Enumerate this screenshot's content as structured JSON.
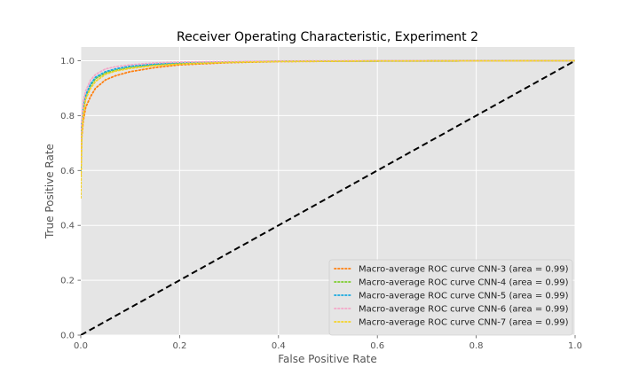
{
  "chart_data": {
    "type": "line",
    "title": "Receiver Operating Characteristic, Experiment 2",
    "xlabel": "False Positive Rate",
    "ylabel": "True Positive Rate",
    "xlim": [
      0.0,
      1.0
    ],
    "ylim": [
      0.0,
      1.05
    ],
    "xticks": [
      0.0,
      0.2,
      0.4,
      0.6,
      0.8,
      1.0
    ],
    "yticks": [
      0.0,
      0.2,
      0.4,
      0.6,
      0.8,
      1.0
    ],
    "xtick_labels": [
      "0.0",
      "0.2",
      "0.4",
      "0.6",
      "0.8",
      "1.0"
    ],
    "ytick_labels": [
      "0.0",
      "0.2",
      "0.4",
      "0.6",
      "0.8",
      "1.0"
    ],
    "grid": true,
    "legend_position": "lower-right",
    "background": "#e5e5e5",
    "series": [
      {
        "name": "Macro-average ROC curve CNN-3 (area = 0.99)",
        "color": "#ff7f0e",
        "style": "dotted",
        "x": [
          0.0,
          0.002,
          0.005,
          0.01,
          0.02,
          0.03,
          0.04,
          0.05,
          0.07,
          0.1,
          0.15,
          0.2,
          0.3,
          0.4,
          0.6,
          1.0
        ],
        "y": [
          0.58,
          0.72,
          0.78,
          0.83,
          0.87,
          0.9,
          0.915,
          0.93,
          0.945,
          0.96,
          0.975,
          0.985,
          0.993,
          0.997,
          0.999,
          1.0
        ]
      },
      {
        "name": "Macro-average ROC curve CNN-4 (area = 0.99)",
        "color": "#7ccd2c",
        "style": "dotted",
        "x": [
          0.0,
          0.002,
          0.005,
          0.01,
          0.02,
          0.03,
          0.05,
          0.07,
          0.1,
          0.15,
          0.2,
          0.3,
          0.4,
          0.6,
          1.0
        ],
        "y": [
          0.6,
          0.76,
          0.82,
          0.87,
          0.91,
          0.935,
          0.955,
          0.965,
          0.975,
          0.985,
          0.99,
          0.995,
          0.998,
          0.999,
          1.0
        ]
      },
      {
        "name": "Macro-average ROC curve CNN-5 (area = 0.99)",
        "color": "#17a9e0",
        "style": "dotted",
        "x": [
          0.0,
          0.002,
          0.005,
          0.01,
          0.02,
          0.03,
          0.05,
          0.07,
          0.1,
          0.15,
          0.2,
          0.3,
          0.4,
          0.6,
          1.0
        ],
        "y": [
          0.6,
          0.77,
          0.83,
          0.875,
          0.915,
          0.94,
          0.96,
          0.97,
          0.98,
          0.988,
          0.992,
          0.996,
          0.998,
          0.999,
          1.0
        ]
      },
      {
        "name": "Macro-average ROC curve CNN-6 (area = 0.99)",
        "color": "#f4a6c8",
        "style": "dotted",
        "x": [
          0.0,
          0.002,
          0.005,
          0.01,
          0.02,
          0.03,
          0.05,
          0.07,
          0.1,
          0.15,
          0.2,
          0.3,
          0.4,
          0.6,
          1.0
        ],
        "y": [
          0.62,
          0.78,
          0.85,
          0.89,
          0.93,
          0.95,
          0.97,
          0.978,
          0.985,
          0.992,
          0.995,
          0.997,
          0.999,
          1.0,
          1.0
        ]
      },
      {
        "name": "Macro-average ROC curve CNN-7 (area = 0.99)",
        "color": "#f5d327",
        "style": "dotted",
        "x": [
          0.0,
          0.002,
          0.005,
          0.01,
          0.02,
          0.03,
          0.05,
          0.07,
          0.1,
          0.15,
          0.2,
          0.3,
          0.4,
          0.6,
          1.0
        ],
        "y": [
          0.5,
          0.73,
          0.8,
          0.86,
          0.9,
          0.925,
          0.95,
          0.962,
          0.972,
          0.982,
          0.988,
          0.994,
          0.997,
          0.999,
          1.0
        ]
      }
    ],
    "reference_line": {
      "color": "#000000",
      "style": "dashed",
      "x": [
        0.0,
        1.0
      ],
      "y": [
        0.0,
        1.0
      ]
    }
  }
}
